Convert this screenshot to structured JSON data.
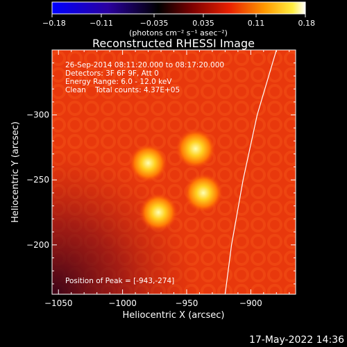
{
  "colorbar": {
    "min": -0.18,
    "max": 0.18,
    "tick_labels": [
      "-0.18",
      "-0.11",
      "-0.035",
      "0.035",
      "0.11",
      "0.18"
    ],
    "units_text": "(photons cm⁻² s⁻¹ asec⁻²)",
    "colormap": [
      "#0000ff",
      "#1a0080",
      "#000000",
      "#3a0000",
      "#c81a00",
      "#ff8a00",
      "#ffe000",
      "#ffffff"
    ]
  },
  "image": {
    "title": "Reconstructed RHESSI Image",
    "info_lines": [
      "26-Sep-2014 08:11:20.000 to 08:17:20.000",
      "Detectors: 3F 6F 9F, Att 0",
      "Energy Range: 6.0 - 12.0 keV",
      "Clean    Total counts: 4.37E+05"
    ],
    "peak_text": "Position of Peak = [-943,-274]",
    "background_color": "#f03a0c"
  },
  "axes": {
    "xlabel": "Heliocentric X (arcsec)",
    "ylabel": "Heliocentric Y (arcsec)",
    "xlim": [
      -1055,
      -865
    ],
    "ylim": [
      -350,
      -162
    ],
    "x_ticks": [
      -1050,
      -1000,
      -950,
      -900
    ],
    "x_tick_labels": [
      "−1050",
      "−1000",
      "−950",
      "−900"
    ],
    "y_ticks": [
      -200,
      -250,
      -300
    ],
    "y_tick_labels": [
      "−200",
      "−250",
      "−300"
    ]
  },
  "chart_data": {
    "type": "heatmap",
    "title": "Reconstructed RHESSI Image",
    "xlabel": "Heliocentric X (arcsec)",
    "ylabel": "Heliocentric Y (arcsec)",
    "xlim": [
      -1055,
      -865
    ],
    "ylim": [
      -350,
      -162
    ],
    "sources": [
      {
        "x": -972,
        "y": -225,
        "intensity": 0.15
      },
      {
        "x": -937,
        "y": -240,
        "intensity": 0.16
      },
      {
        "x": -980,
        "y": -263,
        "intensity": 0.15
      },
      {
        "x": -943,
        "y": -274,
        "intensity": 0.18
      }
    ],
    "limb": [
      {
        "x": -920,
        "y": -162
      },
      {
        "x": -915,
        "y": -200
      },
      {
        "x": -906,
        "y": -250
      },
      {
        "x": -895,
        "y": -300
      },
      {
        "x": -880,
        "y": -350
      }
    ]
  },
  "footer": {
    "timestamp": "17-May-2022 14:36"
  }
}
